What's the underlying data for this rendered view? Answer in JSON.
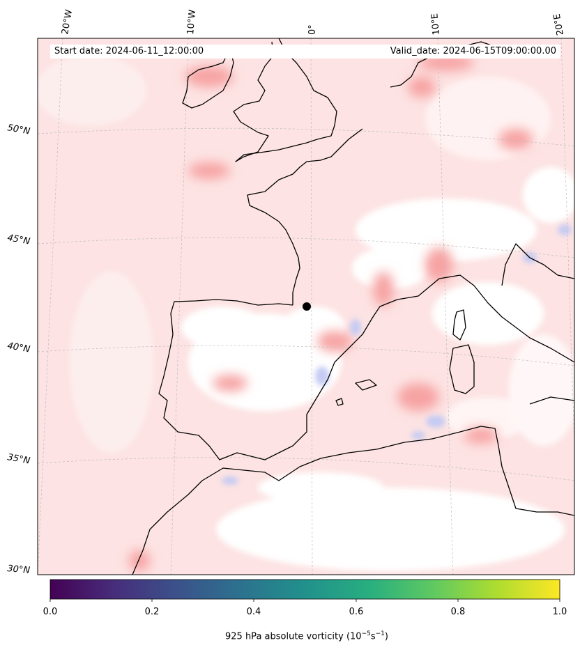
{
  "header": {
    "start_date": "Start date: 2024-06-11_12:00:00",
    "valid_date": "Valid_date: 2024-06-15T09:00:00.00"
  },
  "map": {
    "lon_labels": [
      "20°W",
      "10°W",
      "0°",
      "10°E",
      "20°E"
    ],
    "lat_labels": [
      "50°N",
      "45°N",
      "40°N",
      "35°N",
      "30°N"
    ],
    "field_colors": {
      "positive": "#f8a0a0",
      "negative": "#b8c0f0",
      "coast": "#000000"
    },
    "marker": "black-dot"
  },
  "colorbar": {
    "ticks": [
      "0.0",
      "0.2",
      "0.4",
      "0.6",
      "0.8",
      "1.0"
    ],
    "label_main": "925 hPa absolute vorticity (10",
    "label_exp1": "−5",
    "label_mid": "s",
    "label_exp2": "−1",
    "label_end": ")",
    "colormap": "viridis"
  }
}
